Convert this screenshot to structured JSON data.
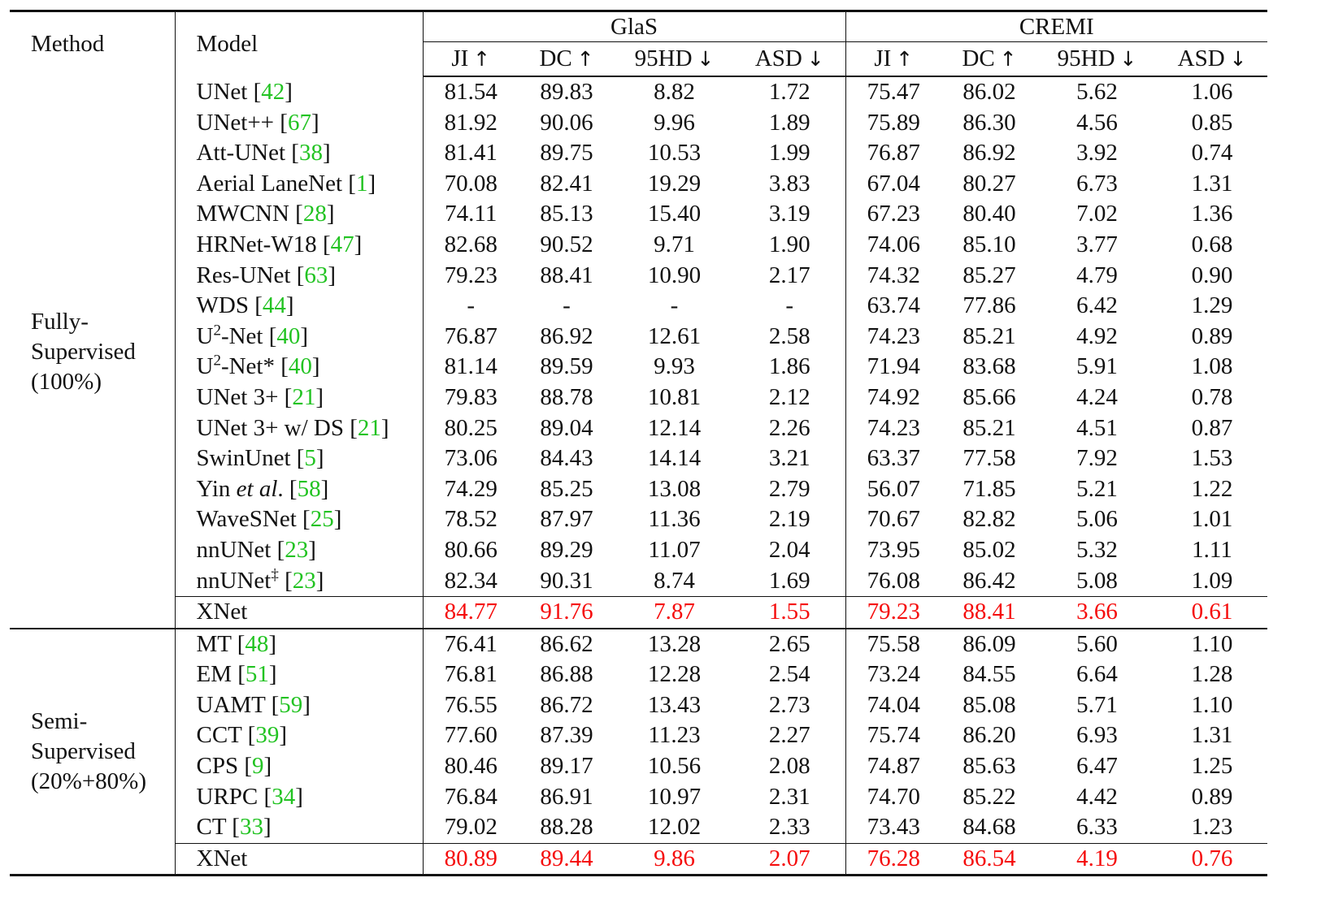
{
  "header": {
    "method": "Method",
    "model": "Model",
    "groups": [
      "GlaS",
      "CREMI"
    ],
    "metrics": [
      "JI",
      "DC",
      "95HD",
      "ASD"
    ],
    "arrows": [
      "↑",
      "↑",
      "↓",
      "↓"
    ]
  },
  "sections": [
    {
      "label_lines": [
        "Fully-",
        "Supervised",
        "(100%)"
      ],
      "rows": [
        {
          "name": "UNet",
          "sup": "",
          "italic": "",
          "ref": "42",
          "values": [
            "81.54",
            "89.83",
            "8.82",
            "1.72",
            "75.47",
            "86.02",
            "5.62",
            "1.06"
          ],
          "styles": [
            "",
            "",
            "",
            "",
            "",
            "",
            "",
            ""
          ]
        },
        {
          "name": "UNet++",
          "sup": "",
          "italic": "",
          "ref": "67",
          "values": [
            "81.92",
            "90.06",
            "9.96",
            "1.89",
            "75.89",
            "86.30",
            "4.56",
            "0.85"
          ],
          "styles": [
            "",
            "",
            "",
            "",
            "",
            "",
            "",
            ""
          ]
        },
        {
          "name": "Att-UNet",
          "sup": "",
          "italic": "",
          "ref": "38",
          "values": [
            "81.41",
            "89.75",
            "10.53",
            "1.99",
            "76.87",
            "86.92",
            "3.92",
            "0.74"
          ],
          "styles": [
            "",
            "",
            "",
            "",
            "bold",
            "bold",
            "",
            ""
          ]
        },
        {
          "name": "Aerial LaneNet",
          "sup": "",
          "italic": "",
          "ref": "1",
          "values": [
            "70.08",
            "82.41",
            "19.29",
            "3.83",
            "67.04",
            "80.27",
            "6.73",
            "1.31"
          ],
          "styles": [
            "",
            "",
            "",
            "",
            "",
            "",
            "",
            ""
          ]
        },
        {
          "name": "MWCNN",
          "sup": "",
          "italic": "",
          "ref": "28",
          "values": [
            "74.11",
            "85.13",
            "15.40",
            "3.19",
            "67.23",
            "80.40",
            "7.02",
            "1.36"
          ],
          "styles": [
            "",
            "",
            "",
            "",
            "",
            "",
            "",
            ""
          ]
        },
        {
          "name": "HRNet-W18",
          "sup": "",
          "italic": "",
          "ref": "47",
          "values": [
            "82.68",
            "90.52",
            "9.71",
            "1.90",
            "74.06",
            "85.10",
            "3.77",
            "0.68"
          ],
          "styles": [
            "bold",
            "bold",
            "",
            "",
            "",
            "",
            "bold",
            "bold"
          ]
        },
        {
          "name": "Res-UNet",
          "sup": "",
          "italic": "",
          "ref": "63",
          "values": [
            "79.23",
            "88.41",
            "10.90",
            "2.17",
            "74.32",
            "85.27",
            "4.79",
            "0.90"
          ],
          "styles": [
            "",
            "",
            "",
            "",
            "",
            "",
            "",
            ""
          ]
        },
        {
          "name": "WDS",
          "sup": "",
          "italic": "",
          "ref": "44",
          "values": [
            "-",
            "-",
            "-",
            "-",
            "63.74",
            "77.86",
            "6.42",
            "1.29"
          ],
          "styles": [
            "",
            "",
            "",
            "",
            "",
            "",
            "",
            ""
          ]
        },
        {
          "name": "U",
          "sup": "2",
          "tail": "-Net",
          "italic": "",
          "ref": "40",
          "values": [
            "76.87",
            "86.92",
            "12.61",
            "2.58",
            "74.23",
            "85.21",
            "4.92",
            "0.89"
          ],
          "styles": [
            "",
            "",
            "",
            "",
            "",
            "",
            "",
            ""
          ]
        },
        {
          "name": "U",
          "sup": "2",
          "tail": "-Net*",
          "italic": "",
          "ref": "40",
          "values": [
            "81.14",
            "89.59",
            "9.93",
            "1.86",
            "71.94",
            "83.68",
            "5.91",
            "1.08"
          ],
          "styles": [
            "",
            "",
            "",
            "",
            "",
            "",
            "",
            ""
          ]
        },
        {
          "name": "UNet 3+",
          "sup": "",
          "italic": "",
          "ref": "21",
          "values": [
            "79.83",
            "88.78",
            "10.81",
            "2.12",
            "74.92",
            "85.66",
            "4.24",
            "0.78"
          ],
          "styles": [
            "",
            "",
            "",
            "",
            "",
            "",
            "",
            ""
          ]
        },
        {
          "name": "UNet 3+ w/ DS",
          "sup": "",
          "italic": "",
          "ref": "21",
          "values": [
            "80.25",
            "89.04",
            "12.14",
            "2.26",
            "74.23",
            "85.21",
            "4.51",
            "0.87"
          ],
          "styles": [
            "",
            "",
            "",
            "",
            "",
            "",
            "",
            ""
          ]
        },
        {
          "name": "SwinUnet",
          "sup": "",
          "italic": "",
          "ref": "5",
          "values": [
            "73.06",
            "84.43",
            "14.14",
            "3.21",
            "63.37",
            "77.58",
            "7.92",
            "1.53"
          ],
          "styles": [
            "",
            "",
            "",
            "",
            "",
            "",
            "",
            ""
          ]
        },
        {
          "name": "Yin ",
          "sup": "",
          "italic": "et al",
          "tail": ".",
          "ref": "58",
          "values": [
            "74.29",
            "85.25",
            "13.08",
            "2.79",
            "56.07",
            "71.85",
            "5.21",
            "1.22"
          ],
          "styles": [
            "",
            "",
            "",
            "",
            "",
            "",
            "",
            ""
          ]
        },
        {
          "name": "WaveSNet",
          "sup": "",
          "italic": "",
          "ref": "25",
          "values": [
            "78.52",
            "87.97",
            "11.36",
            "2.19",
            "70.67",
            "82.82",
            "5.06",
            "1.01"
          ],
          "styles": [
            "",
            "",
            "",
            "",
            "",
            "",
            "",
            ""
          ]
        },
        {
          "name": "nnUNet",
          "sup": "",
          "italic": "",
          "ref": "23",
          "values": [
            "80.66",
            "89.29",
            "11.07",
            "2.04",
            "73.95",
            "85.02",
            "5.32",
            "1.11"
          ],
          "styles": [
            "",
            "",
            "",
            "",
            "",
            "",
            "",
            ""
          ]
        },
        {
          "name": "nnUNet",
          "sup": "‡",
          "italic": "",
          "ref": "23",
          "values": [
            "82.34",
            "90.31",
            "8.74",
            "1.69",
            "76.08",
            "86.42",
            "5.08",
            "1.09"
          ],
          "styles": [
            "",
            "",
            "bold",
            "bold",
            "",
            "",
            "",
            ""
          ]
        }
      ],
      "best": {
        "name": "XNet",
        "values": [
          "84.77",
          "91.76",
          "7.87",
          "1.55",
          "79.23",
          "88.41",
          "3.66",
          "0.61"
        ]
      }
    },
    {
      "label_lines": [
        "Semi-",
        "Supervised",
        "(20%+80%)"
      ],
      "rows": [
        {
          "name": "MT",
          "sup": "",
          "italic": "",
          "ref": "48",
          "values": [
            "76.41",
            "86.62",
            "13.28",
            "2.65",
            "75.58",
            "86.09",
            "5.60",
            "1.10"
          ],
          "styles": [
            "",
            "",
            "",
            "",
            "",
            "",
            "",
            ""
          ]
        },
        {
          "name": "EM",
          "sup": "",
          "italic": "",
          "ref": "51",
          "values": [
            "76.81",
            "86.88",
            "12.28",
            "2.54",
            "73.24",
            "84.55",
            "6.64",
            "1.28"
          ],
          "styles": [
            "",
            "",
            "",
            "",
            "",
            "",
            "",
            ""
          ]
        },
        {
          "name": "UAMT",
          "sup": "",
          "italic": "",
          "ref": "59",
          "values": [
            "76.55",
            "86.72",
            "13.43",
            "2.73",
            "74.04",
            "85.08",
            "5.71",
            "1.10"
          ],
          "styles": [
            "",
            "",
            "",
            "",
            "",
            "",
            "",
            ""
          ]
        },
        {
          "name": "CCT",
          "sup": "",
          "italic": "",
          "ref": "39",
          "values": [
            "77.60",
            "87.39",
            "11.23",
            "2.27",
            "75.74",
            "86.20",
            "6.93",
            "1.31"
          ],
          "styles": [
            "",
            "",
            "",
            "",
            "bold",
            "bold",
            "",
            ""
          ]
        },
        {
          "name": "CPS",
          "sup": "",
          "italic": "",
          "ref": "9",
          "values": [
            "80.46",
            "89.17",
            "10.56",
            "2.08",
            "74.87",
            "85.63",
            "6.47",
            "1.25"
          ],
          "styles": [
            "bold",
            "bold",
            "bold",
            "bold",
            "",
            "",
            "",
            ""
          ]
        },
        {
          "name": "URPC",
          "sup": "",
          "italic": "",
          "ref": "34",
          "values": [
            "76.84",
            "86.91",
            "10.97",
            "2.31",
            "74.70",
            "85.22",
            "4.42",
            "0.89"
          ],
          "styles": [
            "",
            "",
            "",
            "",
            "",
            "",
            "bold",
            "bold"
          ]
        },
        {
          "name": "CT",
          "sup": "",
          "italic": "",
          "ref": "33",
          "values": [
            "79.02",
            "88.28",
            "12.02",
            "2.33",
            "73.43",
            "84.68",
            "6.33",
            "1.23"
          ],
          "styles": [
            "",
            "",
            "",
            "",
            "",
            "",
            "",
            ""
          ]
        }
      ],
      "best": {
        "name": "XNet",
        "values": [
          "80.89",
          "89.44",
          "9.86",
          "2.07",
          "76.28",
          "86.54",
          "4.19",
          "0.76"
        ]
      }
    }
  ]
}
